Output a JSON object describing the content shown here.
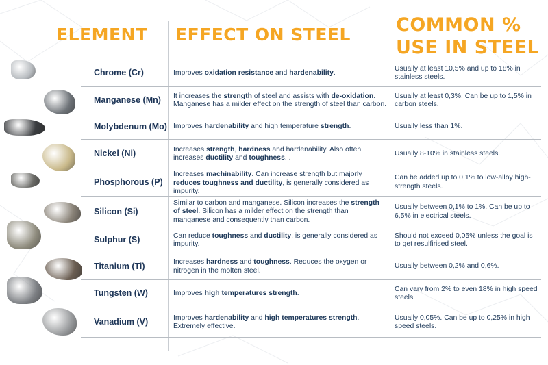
{
  "headers": {
    "element": "ELEMENT",
    "effect": "EFFECT ON STEEL",
    "common": "COMMON % USE IN STEEL"
  },
  "colors": {
    "header": "#f5a623",
    "text": "#1f3a5a",
    "divider": "#b8bdc3"
  },
  "rows": [
    {
      "name": "Chrome (Cr)",
      "effect": [
        [
          "Improves ",
          false
        ],
        [
          "oxidation resistance",
          true
        ],
        [
          " and ",
          false
        ],
        [
          "hardenability",
          true
        ],
        [
          ".",
          false
        ]
      ],
      "common": "Usually at least 10,5% and up to 18% in stainless steels."
    },
    {
      "name": "Manganese (Mn)",
      "effect": [
        [
          "It increases the ",
          false
        ],
        [
          "strength",
          true
        ],
        [
          " of steel and assists with ",
          false
        ],
        [
          "de-oxidation",
          true
        ],
        [
          ". Manganese has a milder effect on the strength of steel than carbon.",
          false
        ]
      ],
      "common": "Usually at least 0,3%. Can be up to 1,5% in carbon steels."
    },
    {
      "name": "Molybdenum (Mo)",
      "effect": [
        [
          "Improves ",
          false
        ],
        [
          "hardenability",
          true
        ],
        [
          " and high temperature ",
          false
        ],
        [
          "strength",
          true
        ],
        [
          ".",
          false
        ]
      ],
      "common": "Usually less than 1%."
    },
    {
      "name": "Nickel (Ni)",
      "effect": [
        [
          "Increases ",
          false
        ],
        [
          "strength",
          true
        ],
        [
          ", ",
          false
        ],
        [
          "hardness",
          true
        ],
        [
          " and hardenability. Also often increases ",
          false
        ],
        [
          "ductility",
          true
        ],
        [
          " and ",
          false
        ],
        [
          "toughness",
          true
        ],
        [
          ". .",
          false
        ]
      ],
      "common": "Usually 8-10% in stainless steels."
    },
    {
      "name": "Phosphorous (P)",
      "effect": [
        [
          "Increases ",
          false
        ],
        [
          "machinability",
          true
        ],
        [
          ". Can increase strength but majorly ",
          false
        ],
        [
          "reduces toughness and ductility",
          true
        ],
        [
          ", is generally considered as impurity.",
          false
        ]
      ],
      "common": "Can be added up to 0,1% to low-alloy high-strength steels."
    },
    {
      "name": "Silicon (Si)",
      "effect": [
        [
          "Similar to carbon and manganese. Silicon increases the ",
          false
        ],
        [
          "strength of steel",
          true
        ],
        [
          ". Silicon has a milder effect on the strength than manganese and consequently than carbon.",
          false
        ]
      ],
      "common": "Usually between 0,1% to 1%. Can be up to 6,5% in electrical steels."
    },
    {
      "name": "Sulphur (S)",
      "effect": [
        [
          "Can reduce ",
          false
        ],
        [
          "toughness",
          true
        ],
        [
          " and ",
          false
        ],
        [
          "ductility",
          true
        ],
        [
          ", is generally considered as impurity.",
          false
        ]
      ],
      "common": "Should not exceed 0,05% unless the goal is to get resulfirised steel."
    },
    {
      "name": "Titanium (Ti)",
      "effect": [
        [
          "Increases ",
          false
        ],
        [
          "hardness",
          true
        ],
        [
          " and ",
          false
        ],
        [
          "toughness",
          true
        ],
        [
          ". Reduces the oxygen or nitrogen in the molten steel.",
          false
        ]
      ],
      "common": "Usually between 0,2% and 0,6%."
    },
    {
      "name": "Tungsten (W)",
      "effect": [
        [
          "Improves ",
          false
        ],
        [
          "high temperatures strength",
          true
        ],
        [
          ".",
          false
        ]
      ],
      "common": "Can vary from 2% to even 18% in high speed steels."
    },
    {
      "name": "Vanadium (V)",
      "effect": [
        [
          "Improves ",
          false
        ],
        [
          "hardenability",
          true
        ],
        [
          " and ",
          false
        ],
        [
          "high temperatures strength",
          true
        ],
        [
          ". Extremely effective.",
          false
        ]
      ],
      "common": "Usually 0,05%. Can be up to 0,25% in high speed steels."
    }
  ]
}
